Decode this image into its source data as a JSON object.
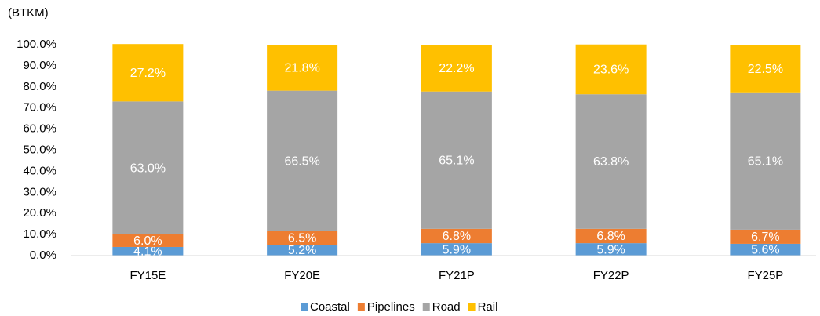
{
  "chart_data": {
    "type": "stacked_bar",
    "ylabel": "(BTKM)",
    "categories": [
      "FY15E",
      "FY20E",
      "FY21P",
      "FY22P",
      "FY25P"
    ],
    "series": [
      {
        "name": "Coastal",
        "color": "#5b9bd5",
        "values": [
          4.1,
          5.2,
          5.9,
          5.9,
          5.6
        ],
        "value_labels": [
          "4.1%",
          "5.2%",
          "5.9%",
          "5.9%",
          "5.6%"
        ]
      },
      {
        "name": "Pipelines",
        "color": "#ed7d31",
        "values": [
          6.0,
          6.5,
          6.8,
          6.8,
          6.7
        ],
        "value_labels": [
          "6.0%",
          "6.5%",
          "6.8%",
          "6.8%",
          "6.7%"
        ]
      },
      {
        "name": "Road",
        "color": "#a5a5a5",
        "values": [
          63.0,
          66.5,
          65.1,
          63.8,
          65.1
        ],
        "value_labels": [
          "63.0%",
          "66.5%",
          "65.1%",
          "63.8%",
          "65.1%"
        ]
      },
      {
        "name": "Rail",
        "color": "#ffc000",
        "values": [
          27.2,
          21.8,
          22.2,
          23.6,
          22.5
        ],
        "value_labels": [
          "27.2%",
          "21.8%",
          "22.2%",
          "23.6%",
          "22.5%"
        ]
      }
    ],
    "ylim": [
      0,
      100
    ],
    "yticks": [
      {
        "value": 0,
        "label": "0.0%"
      },
      {
        "value": 10,
        "label": "10.0%"
      },
      {
        "value": 20,
        "label": "20.0%"
      },
      {
        "value": 30,
        "label": "30.0%"
      },
      {
        "value": 40,
        "label": "40.0%"
      },
      {
        "value": 50,
        "label": "50.0%"
      },
      {
        "value": 60,
        "label": "60.0%"
      },
      {
        "value": 70,
        "label": "70.0%"
      },
      {
        "value": 80,
        "label": "80.0%"
      },
      {
        "value": 90,
        "label": "90.0%"
      },
      {
        "value": 100,
        "label": "100.0%"
      }
    ],
    "grid": false,
    "legend": "bottom"
  }
}
